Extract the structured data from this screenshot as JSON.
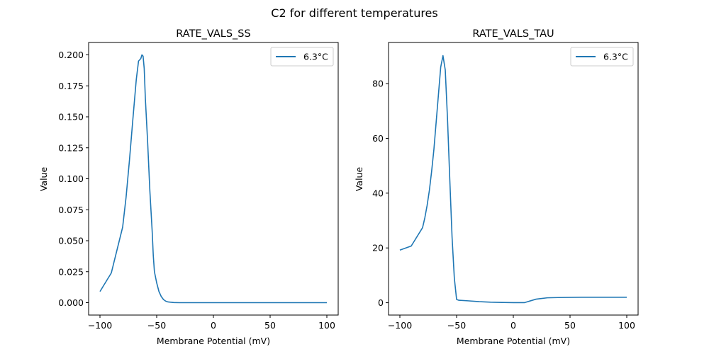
{
  "figure": {
    "suptitle": "C2 for different temperatures"
  },
  "chart_data": [
    {
      "type": "line",
      "title": "RATE_VALS_SS",
      "xlabel": "Membrane Potential (mV)",
      "ylabel": "Value",
      "xlim": [
        -110,
        110
      ],
      "ylim": [
        -0.01,
        0.21
      ],
      "xticks": [
        -100,
        -50,
        0,
        50,
        100
      ],
      "xtick_labels": [
        "−100",
        "−50",
        "0",
        "50",
        "100"
      ],
      "yticks": [
        0.0,
        0.025,
        0.05,
        0.075,
        0.1,
        0.125,
        0.15,
        0.175,
        0.2
      ],
      "ytick_labels": [
        "0.000",
        "0.025",
        "0.050",
        "0.075",
        "0.100",
        "0.125",
        "0.150",
        "0.175",
        "0.200"
      ],
      "grid": false,
      "legend_position": "top-right",
      "series": [
        {
          "name": "6.3°C",
          "color": "#1f77b4",
          "x": [
            -100,
            -90,
            -80,
            -77,
            -74,
            -71,
            -68,
            -66,
            -64,
            -63,
            -62,
            -61,
            -60,
            -58,
            -56,
            -54,
            -53,
            -52,
            -50,
            -48,
            -46,
            -44,
            -42,
            -40,
            -35,
            -30,
            0,
            50,
            100
          ],
          "y": [
            0.009,
            0.024,
            0.061,
            0.085,
            0.115,
            0.148,
            0.18,
            0.195,
            0.197,
            0.2,
            0.199,
            0.189,
            0.165,
            0.13,
            0.09,
            0.058,
            0.038,
            0.025,
            0.016,
            0.009,
            0.005,
            0.0025,
            0.0012,
            0.0006,
            0.0001,
            0.0,
            0.0,
            0.0,
            0.0
          ]
        }
      ]
    },
    {
      "type": "line",
      "title": "RATE_VALS_TAU",
      "xlabel": "Membrane Potential (mV)",
      "ylabel": "Value",
      "xlim": [
        -110,
        110
      ],
      "ylim": [
        -4.5,
        95
      ],
      "xticks": [
        -100,
        -50,
        0,
        50,
        100
      ],
      "xtick_labels": [
        "−100",
        "−50",
        "0",
        "50",
        "100"
      ],
      "yticks": [
        0,
        20,
        40,
        60,
        80
      ],
      "ytick_labels": [
        "0",
        "20",
        "40",
        "60",
        "80"
      ],
      "grid": false,
      "legend_position": "top-right",
      "series": [
        {
          "name": "6.3°C",
          "color": "#1f77b4",
          "x": [
            -100,
            -90,
            -80,
            -78,
            -76,
            -74,
            -72,
            -70,
            -68,
            -66,
            -64,
            -62,
            -60,
            -58,
            -56,
            -54,
            -52,
            -50,
            -48,
            -40,
            -30,
            -20,
            -10,
            0,
            10,
            20,
            30,
            40,
            60,
            100
          ],
          "y": [
            19.2,
            20.7,
            27.4,
            31,
            35.5,
            41,
            48,
            56,
            66,
            76,
            86,
            90.2,
            85,
            67,
            45,
            24,
            9,
            1.2,
            0.9,
            0.7,
            0.4,
            0.2,
            0.1,
            0.05,
            0.05,
            1.3,
            1.8,
            1.9,
            2.0,
            2.0
          ]
        }
      ]
    }
  ]
}
